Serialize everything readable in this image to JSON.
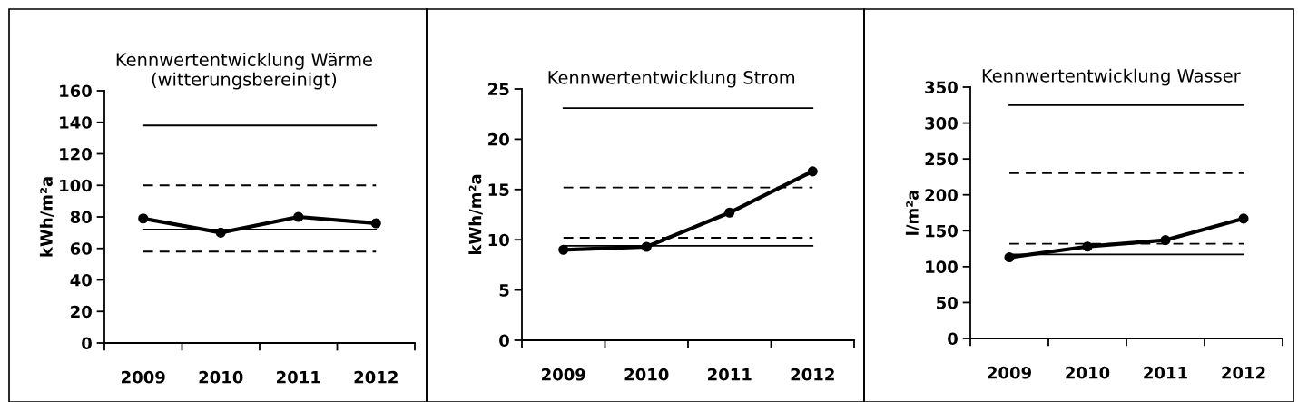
{
  "chart_data": [
    {
      "type": "line",
      "title": "Kennwertentwicklung Wärme\n(witterungsbereinigt)",
      "ylabel": "kWh/m²a",
      "categories": [
        "2009",
        "2010",
        "2011",
        "2012"
      ],
      "ylim": [
        0,
        160
      ],
      "yticks": [
        0,
        20,
        40,
        60,
        80,
        100,
        120,
        140,
        160
      ],
      "grid": false,
      "series": [
        {
          "color": "#000000",
          "values": [
            138,
            138,
            138,
            138
          ],
          "marker": "none",
          "line_style": "solid"
        },
        {
          "color": "#000000",
          "values": [
            100,
            100,
            100,
            100
          ],
          "marker": "none",
          "line_style": "dashed"
        },
        {
          "color": "#000000",
          "values": [
            72,
            72,
            72,
            72
          ],
          "marker": "none",
          "line_style": "solid"
        },
        {
          "color": "#000000",
          "values": [
            58,
            58,
            58,
            58
          ],
          "marker": "none",
          "line_style": "dashed"
        },
        {
          "color": "#000000",
          "values": [
            79,
            70,
            80,
            76
          ],
          "marker": "circle",
          "line_style": "solid"
        }
      ]
    },
    {
      "type": "line",
      "title": "Kennwertentwicklung Strom",
      "ylabel": "kWh/m²a",
      "categories": [
        "2009",
        "2010",
        "2011",
        "2012"
      ],
      "ylim": [
        0,
        25
      ],
      "yticks": [
        0,
        5,
        10,
        15,
        20,
        25
      ],
      "grid": false,
      "series": [
        {
          "color": "#000000",
          "values": [
            23.1,
            23.1,
            23.1,
            23.1
          ],
          "marker": "none",
          "line_style": "solid"
        },
        {
          "color": "#000000",
          "values": [
            15.2,
            15.2,
            15.2,
            15.2
          ],
          "marker": "none",
          "line_style": "dashed"
        },
        {
          "color": "#000000",
          "values": [
            10.2,
            10.2,
            10.2,
            10.2
          ],
          "marker": "none",
          "line_style": "dashed"
        },
        {
          "color": "#000000",
          "values": [
            9.4,
            9.4,
            9.4,
            9.4
          ],
          "marker": "none",
          "line_style": "solid"
        },
        {
          "color": "#000000",
          "values": [
            9.0,
            9.3,
            12.7,
            16.8
          ],
          "marker": "circle",
          "line_style": "solid"
        }
      ]
    },
    {
      "type": "line",
      "title": "Kennwertentwicklung Wasser",
      "ylabel": "l/m²a",
      "categories": [
        "2009",
        "2010",
        "2011",
        "2012"
      ],
      "ylim": [
        0,
        350
      ],
      "yticks": [
        0,
        50,
        100,
        150,
        200,
        250,
        300,
        350
      ],
      "grid": false,
      "series": [
        {
          "color": "#000000",
          "values": [
            325,
            325,
            325,
            325
          ],
          "marker": "none",
          "line_style": "solid"
        },
        {
          "color": "#000000",
          "values": [
            230,
            230,
            230,
            230
          ],
          "marker": "none",
          "line_style": "dashed"
        },
        {
          "color": "#000000",
          "values": [
            132,
            132,
            132,
            132
          ],
          "marker": "none",
          "line_style": "dashed"
        },
        {
          "color": "#000000",
          "values": [
            117,
            117,
            117,
            117
          ],
          "marker": "none",
          "line_style": "solid"
        },
        {
          "color": "#000000",
          "values": [
            113,
            128,
            137,
            167
          ],
          "marker": "circle",
          "line_style": "solid"
        }
      ]
    }
  ]
}
